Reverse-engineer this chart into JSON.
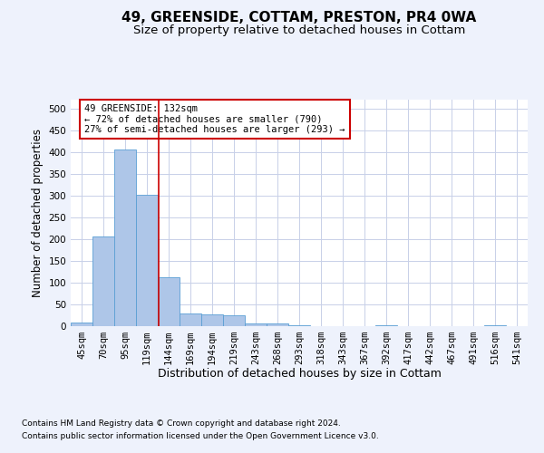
{
  "title": "49, GREENSIDE, COTTAM, PRESTON, PR4 0WA",
  "subtitle": "Size of property relative to detached houses in Cottam",
  "xlabel": "Distribution of detached houses by size in Cottam",
  "ylabel": "Number of detached properties",
  "footer_line1": "Contains HM Land Registry data © Crown copyright and database right 2024.",
  "footer_line2": "Contains public sector information licensed under the Open Government Licence v3.0.",
  "bins": [
    "45sqm",
    "70sqm",
    "95sqm",
    "119sqm",
    "144sqm",
    "169sqm",
    "194sqm",
    "219sqm",
    "243sqm",
    "268sqm",
    "293sqm",
    "318sqm",
    "343sqm",
    "367sqm",
    "392sqm",
    "417sqm",
    "442sqm",
    "467sqm",
    "491sqm",
    "516sqm",
    "541sqm"
  ],
  "bar_heights": [
    8,
    205,
    405,
    302,
    112,
    30,
    27,
    25,
    7,
    6,
    3,
    0,
    0,
    0,
    3,
    0,
    0,
    0,
    0,
    3,
    0
  ],
  "bar_color": "#aec6e8",
  "bar_edge_color": "#5a9fd4",
  "bar_width": 1.0,
  "vline_x": 3.55,
  "vline_color": "#cc0000",
  "annotation_text": "49 GREENSIDE: 132sqm\n← 72% of detached houses are smaller (790)\n27% of semi-detached houses are larger (293) →",
  "annotation_box_color": "#cc0000",
  "ylim": [
    0,
    520
  ],
  "yticks": [
    0,
    50,
    100,
    150,
    200,
    250,
    300,
    350,
    400,
    450,
    500
  ],
  "background_color": "#eef2fc",
  "plot_bg_color": "#ffffff",
  "grid_color": "#c8d0e8",
  "title_fontsize": 11,
  "subtitle_fontsize": 9.5,
  "tick_fontsize": 7.5,
  "ylabel_fontsize": 8.5,
  "xlabel_fontsize": 9,
  "footer_fontsize": 6.5
}
